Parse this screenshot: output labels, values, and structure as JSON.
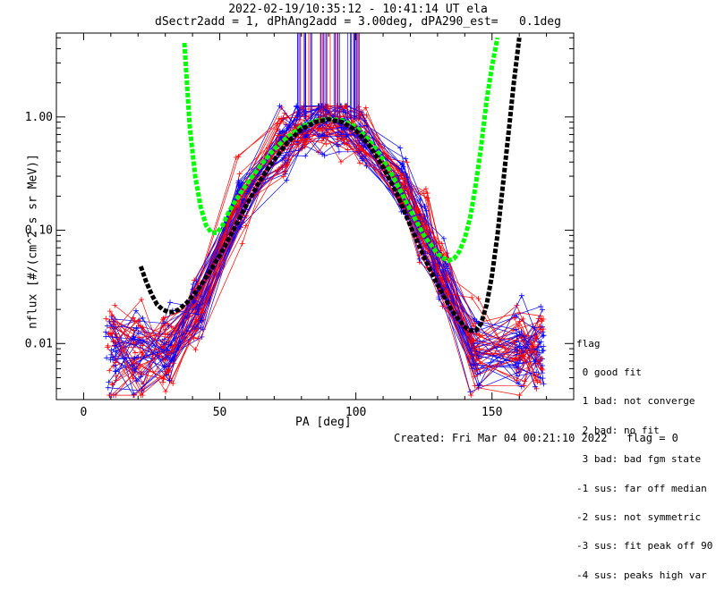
{
  "header": {
    "title_line1": "2022-02-19/10:35:12 - 10:41:14 UT ela",
    "title_line2": "dSectr2add = 1, dPhAng2add = 3.00deg, dPA290_est=   0.1deg"
  },
  "footer": {
    "created": "Created: Fri Mar 04 00:21:10 2022   flag = 0"
  },
  "legend": {
    "title": "flag",
    "entries": [
      " 0 good fit",
      " 1 bad: not converge",
      " 2 bad: no fit",
      " 3 bad: bad fgm state",
      "-1 sus: far off median",
      "-2 sus: not symmetric",
      "-3 sus: fit peak off 90",
      "-4 sus: peaks high var"
    ]
  },
  "chart_data": {
    "type": "line",
    "title": "2022-02-19/10:35:12 - 10:41:14 UT ela",
    "subtitle": "dSectr2add = 1, dPhAng2add = 3.00deg, dPA290_est=   0.1deg",
    "xlabel": "PA [deg]",
    "ylabel": "nflux [#/(cm^2 s sr MeV)]",
    "xlim": [
      -10,
      180
    ],
    "ylim": [
      0.0032,
      5.5
    ],
    "yscale": "log",
    "x_ticks": [
      0,
      50,
      100,
      150
    ],
    "x_tick_labels": [
      "0",
      "50",
      "100",
      "150"
    ],
    "y_ticks": [
      0.01,
      0.1,
      1.0
    ],
    "y_tick_labels": [
      "0.01",
      "0.10",
      "1.00"
    ],
    "grid": false,
    "legend_position": "right",
    "colors": {
      "red": "#ff0000",
      "blue": "#0000ff",
      "green": "#00ff00",
      "black": "#000000",
      "axes": "#000000",
      "background": "#ffffff"
    },
    "series": [
      {
        "color": "#00ff00",
        "style": "thick-dashed",
        "x": [
          37,
          39,
          41,
          43,
          45,
          47,
          49,
          51,
          53,
          55,
          58,
          62,
          66,
          70,
          75,
          80,
          85,
          90,
          95,
          100,
          105,
          110,
          115,
          120,
          125,
          130,
          132,
          134,
          136,
          138,
          140,
          142,
          144,
          146,
          148,
          150,
          152
        ],
        "y": [
          4.5,
          0.8,
          0.3,
          0.16,
          0.11,
          0.095,
          0.095,
          0.11,
          0.14,
          0.17,
          0.22,
          0.3,
          0.4,
          0.52,
          0.67,
          0.82,
          0.92,
          0.96,
          0.93,
          0.82,
          0.62,
          0.42,
          0.26,
          0.15,
          0.09,
          0.062,
          0.057,
          0.054,
          0.056,
          0.065,
          0.085,
          0.13,
          0.25,
          0.55,
          1.4,
          2.8,
          5.0
        ]
      },
      {
        "color": "#000000",
        "style": "thick-dashed",
        "x": [
          21,
          23,
          25,
          27,
          29,
          31,
          33,
          35,
          38,
          42,
          46,
          50,
          55,
          60,
          65,
          70,
          75,
          80,
          85,
          90,
          95,
          100,
          105,
          110,
          115,
          120,
          125,
          130,
          135,
          138,
          140,
          142,
          144,
          146,
          148,
          150,
          152,
          154,
          156,
          158,
          160
        ],
        "y": [
          0.048,
          0.035,
          0.027,
          0.022,
          0.02,
          0.019,
          0.019,
          0.02,
          0.023,
          0.03,
          0.042,
          0.06,
          0.1,
          0.17,
          0.28,
          0.42,
          0.6,
          0.78,
          0.9,
          0.95,
          0.9,
          0.76,
          0.56,
          0.36,
          0.21,
          0.11,
          0.058,
          0.033,
          0.02,
          0.016,
          0.014,
          0.013,
          0.013,
          0.015,
          0.022,
          0.04,
          0.09,
          0.25,
          0.7,
          2.0,
          5.0
        ]
      }
    ]
  }
}
